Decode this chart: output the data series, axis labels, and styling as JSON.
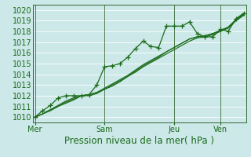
{
  "xlabel": "Pression niveau de la mer( hPa )",
  "bg_color": "#cce8e8",
  "grid_color": "#b8dede",
  "line_color": "#1a6b1a",
  "spine_color": "#336633",
  "ylim": [
    1009.5,
    1020.5
  ],
  "yticks": [
    1010,
    1011,
    1012,
    1013,
    1014,
    1015,
    1016,
    1017,
    1018,
    1019,
    1020
  ],
  "xtick_labels": [
    "Mer",
    "Sam",
    "Jeu",
    "Ven"
  ],
  "xtick_positions": [
    0,
    9,
    18,
    24
  ],
  "vline_positions": [
    0,
    9,
    18,
    24
  ],
  "n_points": 28,
  "series_main": [
    1010.0,
    1010.6,
    1011.1,
    1011.8,
    1012.0,
    1012.0,
    1012.0,
    1012.1,
    1013.0,
    1014.7,
    1014.8,
    1015.0,
    1015.6,
    1016.4,
    1017.1,
    1016.6,
    1016.5,
    1018.5,
    1018.5,
    1018.5,
    1018.9,
    1017.8,
    1017.5,
    1017.5,
    1018.2,
    1018.0,
    1019.2,
    1019.7
  ],
  "series_smooth": [
    [
      1010.0,
      1010.3,
      1010.7,
      1011.1,
      1011.5,
      1011.8,
      1012.0,
      1012.1,
      1012.3,
      1012.6,
      1013.0,
      1013.4,
      1013.8,
      1014.2,
      1014.7,
      1015.1,
      1015.5,
      1015.9,
      1016.3,
      1016.7,
      1017.1,
      1017.4,
      1017.5,
      1017.7,
      1018.0,
      1018.3,
      1019.0,
      1019.5
    ],
    [
      1010.0,
      1010.3,
      1010.7,
      1011.0,
      1011.4,
      1011.7,
      1012.0,
      1012.1,
      1012.3,
      1012.7,
      1013.1,
      1013.5,
      1013.9,
      1014.4,
      1014.9,
      1015.3,
      1015.7,
      1016.1,
      1016.5,
      1016.9,
      1017.3,
      1017.5,
      1017.6,
      1017.8,
      1018.1,
      1018.4,
      1019.1,
      1019.6
    ],
    [
      1010.0,
      1010.3,
      1010.6,
      1011.0,
      1011.3,
      1011.6,
      1012.0,
      1012.0,
      1012.2,
      1012.6,
      1012.9,
      1013.3,
      1013.8,
      1014.3,
      1014.8,
      1015.2,
      1015.6,
      1016.1,
      1016.5,
      1016.9,
      1017.3,
      1017.5,
      1017.6,
      1017.8,
      1018.1,
      1018.4,
      1019.1,
      1019.6
    ]
  ],
  "tick_fontsize": 7,
  "xlabel_fontsize": 8.5,
  "lw_main": 0.9,
  "lw_smooth": 0.85,
  "marker_size": 4.0,
  "marker_lw": 0.9
}
